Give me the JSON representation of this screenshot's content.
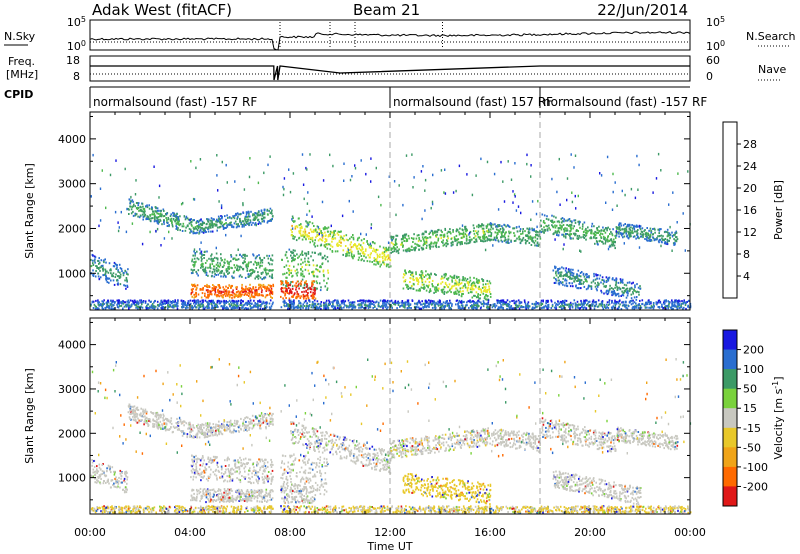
{
  "header": {
    "station": "Adak West (fitACF)",
    "beam": "Beam 21",
    "date": "22/Jun/2014"
  },
  "top_panel": {
    "left_label": "N.Sky",
    "left_ticks": [
      "10^5",
      "10^0"
    ],
    "right_label": "N.Search",
    "right_ticks": [
      "10^5",
      "10^0"
    ]
  },
  "freq_panel": {
    "left_label_1": "Freq.",
    "left_label_2": "[MHz]",
    "left_ticks": [
      "18",
      "8"
    ],
    "right_label": "Nave",
    "right_ticks": [
      "60",
      "0"
    ]
  },
  "cpid": {
    "label": "CPID",
    "segments": [
      {
        "text": "normalsound (fast) -157 RF",
        "start": 0.0,
        "end": 12.0
      },
      {
        "text": "normalsound (fast) 157 RF",
        "start": 12.0,
        "end": 18.0
      },
      {
        "text": "normalsound (fast) -157 RF",
        "start": 18.0,
        "end": 24.0
      }
    ]
  },
  "time_axis": {
    "label": "Time UT",
    "ticks": [
      "00:00",
      "04:00",
      "08:00",
      "12:00",
      "16:00",
      "20:00",
      "00:00"
    ],
    "tick_hours": [
      0,
      4,
      8,
      12,
      16,
      20,
      24
    ]
  },
  "colors": {
    "power": [
      "#1818e0",
      "#2a6ed0",
      "#3c9a66",
      "#4db84d",
      "#e8e82a",
      "#f0a418",
      "#ff6a00",
      "#e01818"
    ],
    "velocity": [
      "#e01818",
      "#ff6a00",
      "#f0a418",
      "#e8c82a",
      "#c8c8c0",
      "#7ad23c",
      "#3c9a66",
      "#2a6ed0",
      "#1818e0"
    ]
  },
  "chart_data": [
    {
      "type": "heatmap",
      "title": "",
      "xlabel": "",
      "ylabel": "Slant Range [km]",
      "xlim": [
        0,
        24
      ],
      "ylim": [
        180,
        4600
      ],
      "yticks": [
        1000,
        2000,
        3000,
        4000
      ],
      "colorbar": {
        "label": "Power [dB]",
        "ticks": [
          4,
          8,
          12,
          16,
          20,
          24,
          28
        ],
        "range": [
          0,
          30
        ]
      },
      "bands": [
        {
          "t0": 1.5,
          "t1": 4.2,
          "r0": 2500,
          "r1": 2050,
          "w": 180,
          "val": 9
        },
        {
          "t0": 4.2,
          "t1": 7.5,
          "r0": 2050,
          "r1": 2350,
          "w": 160,
          "val": 8
        },
        {
          "t0": 8.0,
          "t1": 12.0,
          "r0": 2050,
          "r1": 1350,
          "w": 260,
          "val": 15
        },
        {
          "t0": 12.0,
          "t1": 16.0,
          "r0": 1650,
          "r1": 1950,
          "w": 200,
          "val": 12
        },
        {
          "t0": 16.0,
          "t1": 18.0,
          "r0": 1950,
          "r1": 1800,
          "w": 200,
          "val": 10
        },
        {
          "t0": 4.0,
          "t1": 7.3,
          "r0": 1250,
          "r1": 1150,
          "w": 280,
          "val": 10
        },
        {
          "t0": 4.0,
          "t1": 7.3,
          "r0": 620,
          "r1": 620,
          "w": 150,
          "val": 24
        },
        {
          "t0": 7.6,
          "t1": 9.5,
          "r0": 1150,
          "r1": 1050,
          "w": 420,
          "val": 12
        },
        {
          "t0": 7.6,
          "t1": 9.0,
          "r0": 650,
          "r1": 650,
          "w": 200,
          "val": 26
        },
        {
          "t0": 12.5,
          "t1": 16.0,
          "r0": 900,
          "r1": 650,
          "w": 230,
          "val": 14
        },
        {
          "t0": 18.0,
          "t1": 21.0,
          "r0": 2150,
          "r1": 1800,
          "w": 220,
          "val": 10
        },
        {
          "t0": 21.0,
          "t1": 23.5,
          "r0": 2000,
          "r1": 1800,
          "w": 160,
          "val": 8
        },
        {
          "t0": 18.5,
          "t1": 22.0,
          "r0": 1000,
          "r1": 600,
          "w": 200,
          "val": 7
        },
        {
          "t0": 0.0,
          "t1": 1.5,
          "r0": 1200,
          "r1": 900,
          "w": 250,
          "val": 7
        },
        {
          "t0": 0.0,
          "t1": 24.0,
          "r0": 300,
          "r1": 300,
          "w": 120,
          "val": 5
        }
      ]
    },
    {
      "type": "heatmap",
      "title": "",
      "xlabel": "Time UT",
      "ylabel": "Slant Range [km]",
      "xlim": [
        0,
        24
      ],
      "ylim": [
        180,
        4600
      ],
      "yticks": [
        1000,
        2000,
        3000,
        4000
      ],
      "colorbar": {
        "label": "Velocity [m s^-1]",
        "ticks": [
          200,
          100,
          50,
          15,
          -15,
          -50,
          -100,
          -200
        ],
        "range": [
          -250,
          250
        ]
      },
      "bands": [
        {
          "t0": 1.5,
          "t1": 4.2,
          "r0": 2500,
          "r1": 2050,
          "w": 180,
          "val": 0
        },
        {
          "t0": 4.2,
          "t1": 7.5,
          "r0": 2050,
          "r1": 2350,
          "w": 160,
          "val": 0
        },
        {
          "t0": 8.0,
          "t1": 12.0,
          "r0": 2050,
          "r1": 1350,
          "w": 260,
          "val": 0
        },
        {
          "t0": 12.0,
          "t1": 16.0,
          "r0": 1650,
          "r1": 1950,
          "w": 200,
          "val": -20
        },
        {
          "t0": 16.0,
          "t1": 18.0,
          "r0": 1950,
          "r1": 1800,
          "w": 200,
          "val": 0
        },
        {
          "t0": 4.0,
          "t1": 7.3,
          "r0": 1250,
          "r1": 1150,
          "w": 280,
          "val": 0
        },
        {
          "t0": 4.0,
          "t1": 7.3,
          "r0": 620,
          "r1": 620,
          "w": 150,
          "val": 0
        },
        {
          "t0": 7.6,
          "t1": 9.5,
          "r0": 1150,
          "r1": 1050,
          "w": 420,
          "val": 0
        },
        {
          "t0": 7.6,
          "t1": 9.0,
          "r0": 650,
          "r1": 650,
          "w": 200,
          "val": 0
        },
        {
          "t0": 12.5,
          "t1": 16.0,
          "r0": 900,
          "r1": 650,
          "w": 230,
          "val": -40
        },
        {
          "t0": 18.0,
          "t1": 21.0,
          "r0": 2150,
          "r1": 1800,
          "w": 220,
          "val": 0
        },
        {
          "t0": 21.0,
          "t1": 23.5,
          "r0": 2000,
          "r1": 1800,
          "w": 160,
          "val": 0
        },
        {
          "t0": 18.5,
          "t1": 22.0,
          "r0": 1000,
          "r1": 600,
          "w": 200,
          "val": 0
        },
        {
          "t0": 0.0,
          "t1": 1.5,
          "r0": 1200,
          "r1": 900,
          "w": 250,
          "val": 0
        },
        {
          "t0": 0.0,
          "t1": 24.0,
          "r0": 250,
          "r1": 250,
          "w": 130,
          "val": -30
        }
      ]
    }
  ]
}
